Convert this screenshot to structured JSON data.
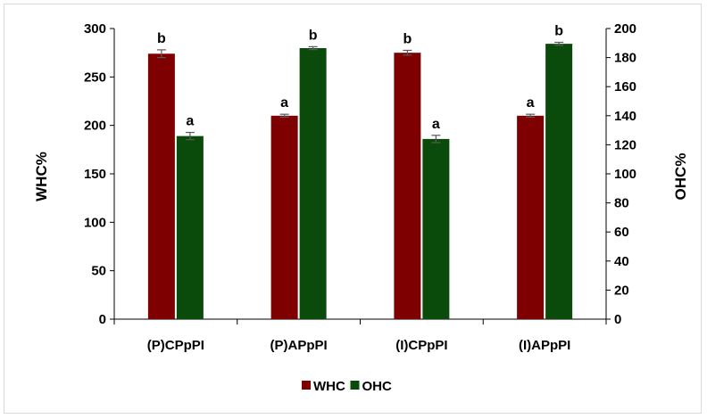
{
  "chart_data": {
    "type": "bar",
    "categories": [
      "(P)CPpPI",
      "(P)APpPI",
      "(I)CPpPI",
      "(I)APpPI"
    ],
    "series": [
      {
        "name": "WHC",
        "axis": "left",
        "color": "#7f0000",
        "values": [
          274,
          210,
          275,
          210
        ],
        "errors": [
          4,
          1.5,
          2.5,
          1.5
        ],
        "significance": [
          "b",
          "a",
          "b",
          "a"
        ]
      },
      {
        "name": "OHC",
        "axis": "right",
        "color": "#0a4a0a",
        "values": [
          126,
          186.5,
          124,
          189.5
        ],
        "errors": [
          2.5,
          1,
          2.5,
          1
        ],
        "significance": [
          "a",
          "b",
          "a",
          "b"
        ]
      }
    ],
    "left_axis": {
      "label": "WHC%",
      "ylim": [
        0,
        300
      ],
      "ticks": [
        0,
        50,
        100,
        150,
        200,
        250,
        300
      ]
    },
    "right_axis": {
      "label": "OHC%",
      "ylim": [
        0,
        200
      ],
      "ticks": [
        0,
        20,
        40,
        60,
        80,
        100,
        120,
        140,
        160,
        180,
        200
      ]
    },
    "legend_position": "bottom",
    "grid": false
  }
}
